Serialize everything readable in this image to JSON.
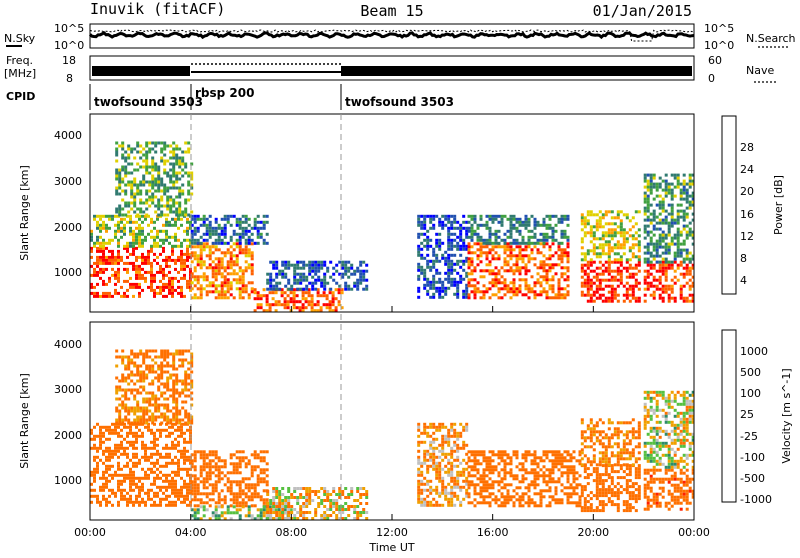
{
  "header": {
    "station": "Inuvik (fitACF)",
    "beam": "Beam 15",
    "date": "01/Jan/2015"
  },
  "strip_nsky": {
    "left_label": "N.Sky",
    "right_label": "N.Search",
    "ticks": [
      "10^5",
      "10^0"
    ],
    "description": "noise levels (log scale 10^0 to 10^5)"
  },
  "strip_freq": {
    "left_label_line1": "Freq.",
    "left_label_line2": "[MHz]",
    "left_ticks": [
      "18",
      "8"
    ],
    "right_label": "Nave",
    "right_ticks": [
      "60",
      "0"
    ]
  },
  "cpid": {
    "label": "CPID",
    "segments": [
      {
        "name": "twofsound 3503",
        "start_hour": 0,
        "end_hour": 4
      },
      {
        "name": "rbsp 200",
        "start_hour": 4,
        "end_hour": 10
      },
      {
        "name": "twofsound 3503",
        "start_hour": 10,
        "end_hour": 24
      }
    ]
  },
  "power_panel": {
    "ylabel": "Slant Range [km]",
    "yticks": [
      "4000",
      "3000",
      "2000",
      "1000"
    ],
    "colorbar_label": "Power [dB]",
    "colorbar_ticks": [
      "28",
      "24",
      "20",
      "16",
      "12",
      "8",
      "4"
    ]
  },
  "velocity_panel": {
    "ylabel": "Slant Range [km]",
    "yticks": [
      "4000",
      "3000",
      "2000",
      "1000"
    ],
    "colorbar_label": "Velocity [m s^-1]",
    "colorbar_ticks": [
      "1000",
      "500",
      "100",
      "25",
      "-25",
      "-100",
      "-500",
      "-1000"
    ]
  },
  "x_axis": {
    "label": "Time UT",
    "ticks": [
      "00:00",
      "04:00",
      "08:00",
      "12:00",
      "16:00",
      "20:00",
      "00:00"
    ]
  },
  "colors": {
    "power_scale": [
      "#0000ff",
      "#2050b0",
      "#307a70",
      "#40a040",
      "#e0d000",
      "#ffa000",
      "#ff6000",
      "#ff0000"
    ],
    "velocity_scale": [
      "#0033cc",
      "#205fa8",
      "#2e8a6a",
      "#55c040",
      "#c0c0c0",
      "#f0a000",
      "#ff7000",
      "#ff2000"
    ]
  },
  "chart_data": [
    {
      "type": "heatmap",
      "title": "Power",
      "xlabel": "Time UT",
      "ylabel": "Slant Range [km]",
      "xlim": [
        0,
        24
      ],
      "ylim": [
        180,
        4500
      ],
      "colorbar": {
        "label": "Power [dB]",
        "range": [
          0,
          32
        ]
      },
      "cells": [
        {
          "time_start": 0.0,
          "time_end": 4.0,
          "range_low": 500,
          "range_high": 1600,
          "value": 28
        },
        {
          "time_start": 0.0,
          "time_end": 4.0,
          "range_low": 1600,
          "range_high": 2300,
          "value": 16
        },
        {
          "time_start": 1.0,
          "time_end": 4.0,
          "range_low": 2300,
          "range_high": 3900,
          "value": 14
        },
        {
          "time_start": 4.0,
          "time_end": 6.5,
          "range_low": 500,
          "range_high": 1700,
          "value": 24
        },
        {
          "time_start": 4.0,
          "time_end": 7.0,
          "range_low": 1700,
          "range_high": 2300,
          "value": 8
        },
        {
          "time_start": 6.5,
          "time_end": 10.0,
          "range_low": 200,
          "range_high": 700,
          "value": 26
        },
        {
          "time_start": 7.0,
          "time_end": 11.0,
          "range_low": 700,
          "range_high": 1300,
          "value": 6
        },
        {
          "time_start": 13.0,
          "time_end": 15.0,
          "range_low": 500,
          "range_high": 2300,
          "value": 6
        },
        {
          "time_start": 15.0,
          "time_end": 19.0,
          "range_low": 500,
          "range_high": 1700,
          "value": 26
        },
        {
          "time_start": 15.0,
          "time_end": 19.0,
          "range_low": 1700,
          "range_high": 2300,
          "value": 10
        },
        {
          "time_start": 19.5,
          "time_end": 21.8,
          "range_low": 400,
          "range_high": 1300,
          "value": 29
        },
        {
          "time_start": 19.5,
          "time_end": 21.8,
          "range_low": 1300,
          "range_high": 2400,
          "value": 18
        },
        {
          "time_start": 22.0,
          "time_end": 24.0,
          "range_low": 400,
          "range_high": 1300,
          "value": 28
        },
        {
          "time_start": 22.0,
          "time_end": 24.0,
          "range_low": 1300,
          "range_high": 3200,
          "value": 12
        }
      ]
    },
    {
      "type": "heatmap",
      "title": "Velocity",
      "xlabel": "Time UT",
      "ylabel": "Slant Range [km]",
      "xlim": [
        0,
        24
      ],
      "ylim": [
        180,
        4500
      ],
      "colorbar": {
        "label": "Velocity [m s^-1]",
        "range": [
          -1000,
          1000
        ]
      },
      "cells": [
        {
          "time_start": 0.0,
          "time_end": 4.0,
          "range_low": 500,
          "range_high": 2300,
          "value": -300
        },
        {
          "time_start": 1.0,
          "time_end": 4.0,
          "range_low": 2300,
          "range_high": 3900,
          "value": -150
        },
        {
          "time_start": 4.0,
          "time_end": 7.0,
          "range_low": 500,
          "range_high": 1700,
          "value": -300
        },
        {
          "time_start": 4.0,
          "time_end": 8.0,
          "range_low": 200,
          "range_high": 500,
          "value": 60
        },
        {
          "time_start": 7.0,
          "time_end": 11.0,
          "range_low": 200,
          "range_high": 900,
          "value": -60
        },
        {
          "time_start": 13.0,
          "time_end": 15.0,
          "range_low": 500,
          "range_high": 2300,
          "value": -100
        },
        {
          "time_start": 15.0,
          "time_end": 19.5,
          "range_low": 500,
          "range_high": 1700,
          "value": -300
        },
        {
          "time_start": 19.5,
          "time_end": 21.8,
          "range_low": 400,
          "range_high": 1400,
          "value": -300
        },
        {
          "time_start": 19.5,
          "time_end": 21.8,
          "range_low": 1400,
          "range_high": 2400,
          "value": -150
        },
        {
          "time_start": 22.0,
          "time_end": 24.0,
          "range_low": 400,
          "range_high": 1300,
          "value": -400
        },
        {
          "time_start": 22.0,
          "time_end": 24.0,
          "range_low": 1300,
          "range_high": 3000,
          "value": 0
        }
      ]
    }
  ]
}
